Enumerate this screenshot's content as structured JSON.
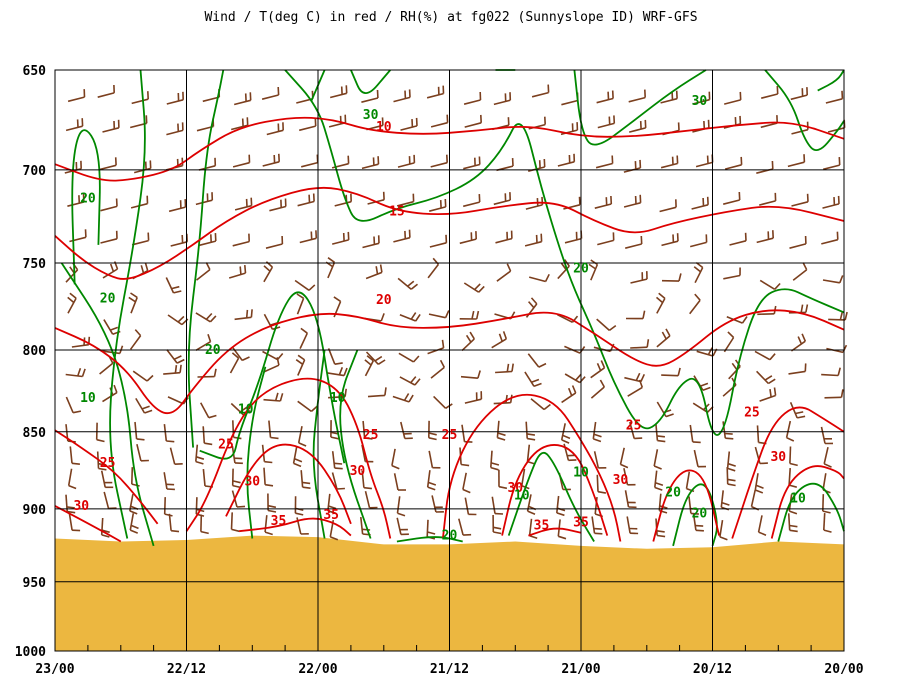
{
  "chart_data": {
    "type": "contour",
    "title": "Wind / T(deg C) in red / RH(%) at fg022 (Sunnyslope ID)  WRF-GFS",
    "y_axis": {
      "range": [
        650,
        1000
      ],
      "ticks": [
        650,
        700,
        750,
        800,
        850,
        900,
        950,
        1000
      ]
    },
    "x_axis": {
      "ticks": [
        "23/00",
        "22/12",
        "22/00",
        "21/12",
        "21/00",
        "20/12",
        "20/00"
      ]
    },
    "colors": {
      "temperature": "#dd0000",
      "rh": "#008800",
      "wind": "#7b3f1e",
      "terrain": "#ecb740",
      "grid": "#000000"
    },
    "temperature_labels": [
      {
        "label": "10",
        "t": 2.5,
        "p": 678
      },
      {
        "label": "15",
        "t": 2.6,
        "p": 722
      },
      {
        "label": "20",
        "t": 2.5,
        "p": 771
      },
      {
        "label": "25",
        "t": 2.4,
        "p": 852
      },
      {
        "label": "25",
        "t": 3.0,
        "p": 852
      },
      {
        "label": "25",
        "t": 4.4,
        "p": 846
      },
      {
        "label": "25",
        "t": 5.3,
        "p": 838
      },
      {
        "label": "25",
        "t": 1.3,
        "p": 858
      },
      {
        "label": "25",
        "t": 0.4,
        "p": 870
      },
      {
        "label": "30",
        "t": 0.2,
        "p": 898
      },
      {
        "label": "30",
        "t": 1.5,
        "p": 882
      },
      {
        "label": "30",
        "t": 2.3,
        "p": 875
      },
      {
        "label": "30",
        "t": 3.5,
        "p": 886
      },
      {
        "label": "30",
        "t": 4.3,
        "p": 881
      },
      {
        "label": "30",
        "t": 5.5,
        "p": 866
      },
      {
        "label": "35",
        "t": 1.7,
        "p": 908
      },
      {
        "label": "35",
        "t": 2.1,
        "p": 904
      },
      {
        "label": "35",
        "t": 3.7,
        "p": 911
      },
      {
        "label": "35",
        "t": 4.0,
        "p": 909
      }
    ],
    "rh_labels": [
      {
        "label": "30",
        "t": 2.4,
        "p": 672
      },
      {
        "label": "30",
        "t": 4.9,
        "p": 665
      },
      {
        "label": "20",
        "t": 0.25,
        "p": 715
      },
      {
        "label": "20",
        "t": 0.4,
        "p": 770
      },
      {
        "label": "20",
        "t": 4.0,
        "p": 753
      },
      {
        "label": "20",
        "t": 1.2,
        "p": 800
      },
      {
        "label": "20",
        "t": 3.0,
        "p": 918
      },
      {
        "label": "20",
        "t": 4.7,
        "p": 889
      },
      {
        "label": "20",
        "t": 4.9,
        "p": 903
      },
      {
        "label": "10",
        "t": 0.25,
        "p": 829
      },
      {
        "label": "10",
        "t": 1.45,
        "p": 836
      },
      {
        "label": "10",
        "t": 2.15,
        "p": 829
      },
      {
        "label": "10",
        "t": 3.55,
        "p": 891
      },
      {
        "label": "10",
        "t": 4.0,
        "p": 876
      },
      {
        "label": "10",
        "t": 5.65,
        "p": 893
      }
    ],
    "terrain_surface": [
      {
        "t": 0.0,
        "p": 920
      },
      {
        "t": 0.5,
        "p": 922
      },
      {
        "t": 1.0,
        "p": 921
      },
      {
        "t": 1.5,
        "p": 918
      },
      {
        "t": 2.0,
        "p": 919
      },
      {
        "t": 2.5,
        "p": 924
      },
      {
        "t": 3.0,
        "p": 924
      },
      {
        "t": 3.5,
        "p": 922
      },
      {
        "t": 4.0,
        "p": 925
      },
      {
        "t": 4.5,
        "p": 927
      },
      {
        "t": 5.0,
        "p": 926
      },
      {
        "t": 5.5,
        "p": 922
      },
      {
        "t": 6.0,
        "p": 924
      }
    ]
  }
}
